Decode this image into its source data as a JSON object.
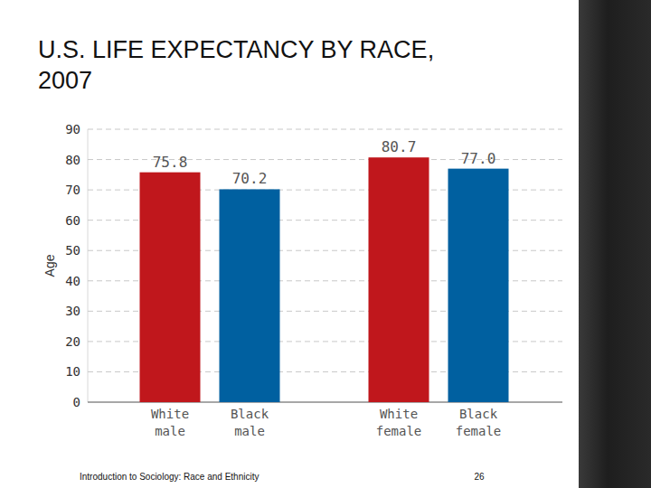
{
  "chart_data": {
    "type": "bar",
    "title": "U.S. LIFE EXPECTANCY BY RACE, 2007",
    "categories": [
      "White male",
      "Black male",
      "White female",
      "Black female"
    ],
    "values": [
      75.8,
      70.2,
      80.7,
      77.0
    ],
    "value_labels": [
      "75.8",
      "70.2",
      "80.7",
      "77.0"
    ],
    "colors": [
      "#c0171c",
      "#0060a0",
      "#c0171c",
      "#0060a0"
    ],
    "y_label": "Age",
    "ylim": [
      0,
      90
    ],
    "yticks": [
      0,
      10,
      20,
      30,
      40,
      50,
      60,
      70,
      80,
      90
    ],
    "grid": true,
    "data_labels": true
  },
  "footer": {
    "source": "Introduction to Sociology: Race and Ethnicity",
    "page": 26
  }
}
